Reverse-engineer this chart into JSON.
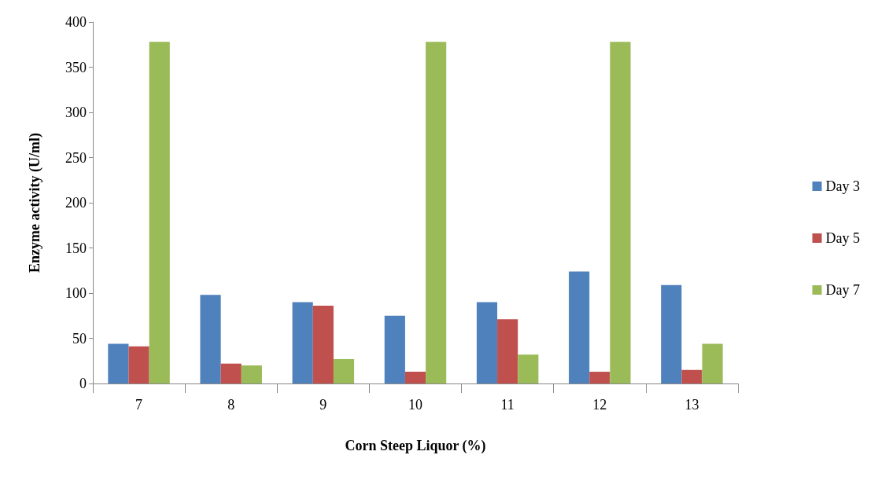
{
  "chart_data": {
    "type": "bar",
    "xlabel": "Corn Steep Liquor (%)",
    "ylabel": "Enzyme activity (U/ml)",
    "categories": [
      "7",
      "8",
      "9",
      "10",
      "11",
      "12",
      "13"
    ],
    "series": [
      {
        "name": "Day 3",
        "color": "#4f81bd",
        "values": [
          44,
          98,
          90,
          75,
          90,
          124,
          109
        ]
      },
      {
        "name": "Day 5",
        "color": "#c0504d",
        "values": [
          41,
          22,
          86,
          13,
          71,
          13,
          15
        ]
      },
      {
        "name": "Day 7",
        "color": "#9bbb59",
        "values": [
          378,
          20,
          27,
          378,
          32,
          378,
          44
        ]
      }
    ],
    "ylim": [
      0,
      400
    ],
    "yticks": [
      0,
      50,
      100,
      150,
      200,
      250,
      300,
      350,
      400
    ],
    "grid": false,
    "legend": "right"
  }
}
